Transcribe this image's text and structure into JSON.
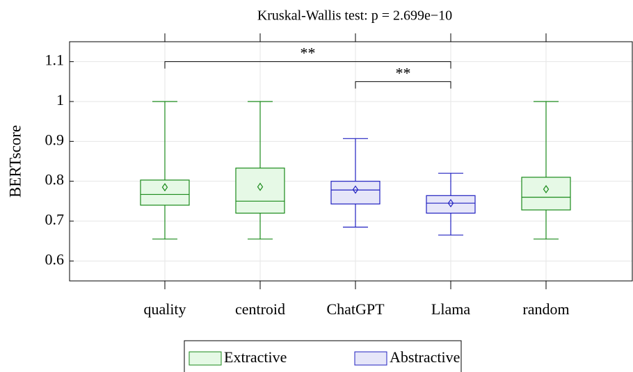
{
  "chart_data": {
    "type": "box",
    "title": "Kruskal-Wallis test: p = 2.699e−10",
    "ylabel": "BERTscore",
    "categories": [
      "quality",
      "centroid",
      "ChatGPT",
      "Llama",
      "random"
    ],
    "series": [
      {
        "name": "Extractive",
        "color": "#1a8a1a",
        "fill": "#e6f9e6"
      },
      {
        "name": "Abstractive",
        "color": "#2020c0",
        "fill": "#e6e6f9"
      }
    ],
    "boxes": [
      {
        "series": 0,
        "low": 0.655,
        "q1": 0.74,
        "median": 0.767,
        "q3": 0.803,
        "high": 1.0,
        "mean": 0.785
      },
      {
        "series": 0,
        "low": 0.655,
        "q1": 0.72,
        "median": 0.75,
        "q3": 0.833,
        "high": 1.0,
        "mean": 0.786
      },
      {
        "series": 1,
        "low": 0.685,
        "q1": 0.743,
        "median": 0.778,
        "q3": 0.8,
        "high": 0.907,
        "mean": 0.779
      },
      {
        "series": 1,
        "low": 0.665,
        "q1": 0.72,
        "median": 0.745,
        "q3": 0.764,
        "high": 0.82,
        "mean": 0.745
      },
      {
        "series": 0,
        "low": 0.655,
        "q1": 0.728,
        "median": 0.76,
        "q3": 0.81,
        "high": 1.0,
        "mean": 0.78
      }
    ],
    "annotations": [
      {
        "from": 0,
        "to": 3,
        "y": 1.1,
        "label": "**"
      },
      {
        "from": 2,
        "to": 3,
        "y": 1.05,
        "label": "**"
      }
    ],
    "ylim": [
      0.55,
      1.15
    ],
    "yticks": [
      0.6,
      0.7,
      0.8,
      0.9,
      1,
      1.1
    ],
    "grid": true,
    "legend": "bottom"
  }
}
